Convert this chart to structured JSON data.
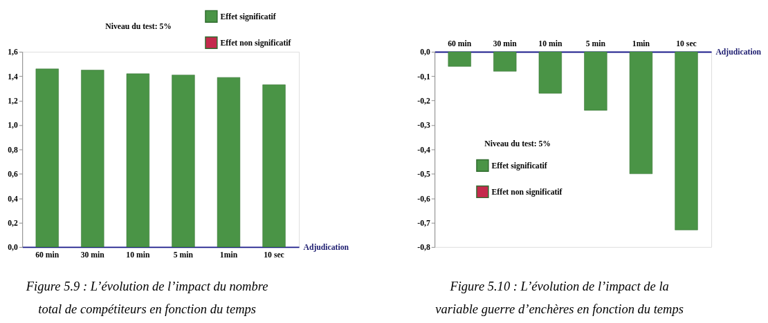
{
  "chart_data": [
    {
      "type": "bar",
      "categories": [
        "60 min",
        "30 min",
        "10 min",
        "5 min",
        "1min",
        "10 sec"
      ],
      "xlabel": "Adjudication",
      "series": [
        {
          "name": "Effet significatif",
          "color": "#4a9446",
          "values": [
            1.46,
            1.45,
            1.42,
            1.41,
            1.39,
            1.33
          ]
        },
        {
          "name": "Effet non significatif",
          "color": "#c42a4c",
          "values": [
            null,
            null,
            null,
            null,
            null,
            null
          ]
        }
      ],
      "ylim": [
        0,
        1.6
      ],
      "yticks": [
        {
          "value": 0,
          "label": "0,0"
        },
        {
          "value": 0.2,
          "label": "0,2"
        },
        {
          "value": 0.4,
          "label": "0,4"
        },
        {
          "value": 0.6,
          "label": "0,6"
        },
        {
          "value": 0.8,
          "label": "0,8"
        },
        {
          "value": 1.0,
          "label": "1,0"
        },
        {
          "value": 1.2,
          "label": "1,2"
        },
        {
          "value": 1.4,
          "label": "1,4"
        },
        {
          "value": 1.6,
          "label": "1,6"
        }
      ],
      "legend": "top right",
      "grid": false,
      "annotations": [
        "Niveau du test: 5%",
        "Figure 5.9 : L’évolution de l’impact du nombre total de compétiteurs en fonction du temps"
      ]
    },
    {
      "type": "bar",
      "categories": [
        "60 min",
        "30 min",
        "10 min",
        "5 min",
        "1min",
        "10 sec"
      ],
      "xlabel": "Adjudication",
      "series": [
        {
          "name": "Effet significatif",
          "color": "#4a9446",
          "values": [
            -0.06,
            -0.08,
            -0.17,
            -0.24,
            -0.5,
            -0.73
          ]
        },
        {
          "name": "Effet non significatif",
          "color": "#c42a4c",
          "values": [
            null,
            null,
            null,
            null,
            null,
            null
          ]
        }
      ],
      "ylim": [
        -0.8,
        0
      ],
      "yticks": [
        {
          "value": -0.8,
          "label": "-0,8"
        },
        {
          "value": -0.7,
          "label": "-0,7"
        },
        {
          "value": -0.6,
          "label": "-0,6"
        },
        {
          "value": -0.5,
          "label": "-0,5"
        },
        {
          "value": -0.4,
          "label": "-0,4"
        },
        {
          "value": -0.3,
          "label": "-0,3"
        },
        {
          "value": -0.2,
          "label": "-0,2"
        },
        {
          "value": -0.1,
          "label": "-0,1"
        },
        {
          "value": 0,
          "label": "0,0"
        }
      ],
      "legend": "bottom left",
      "grid": false,
      "annotations": [
        "Niveau du test: 5%",
        "Figure 5.10 : L’évolution de l’impact de la variable guerre d’enchères en fonction du temps"
      ]
    }
  ]
}
